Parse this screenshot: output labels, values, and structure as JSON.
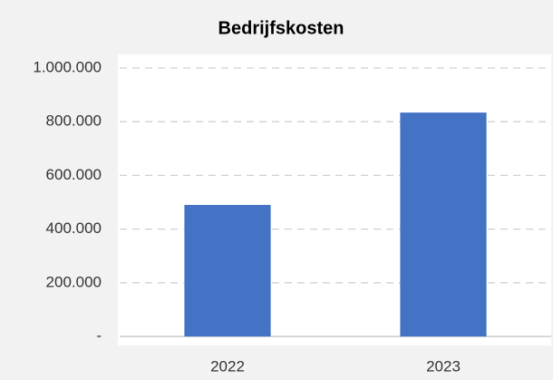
{
  "chart_data": {
    "type": "bar",
    "title": "Bedrijfskosten",
    "categories": [
      "2022",
      "2023"
    ],
    "values": [
      490000,
      834000
    ],
    "color": "#4472c4",
    "ylim": [
      0,
      1000000
    ],
    "yticks": [
      {
        "value": 0,
        "label": "-"
      },
      {
        "value": 200000,
        "label": "200.000"
      },
      {
        "value": 400000,
        "label": "400.000"
      },
      {
        "value": 600000,
        "label": "600.000"
      },
      {
        "value": 800000,
        "label": "800.000"
      },
      {
        "value": 1000000,
        "label": "1.000.000"
      }
    ],
    "grid": true
  }
}
